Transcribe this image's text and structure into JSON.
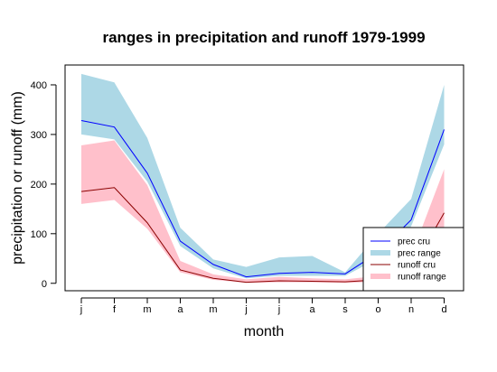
{
  "chart_data": {
    "type": "area",
    "title": "ranges in precipitation and runoff 1979-1999",
    "xlabel": "month",
    "ylabel": "precipitation or runoff (mm)",
    "categories": [
      "j",
      "f",
      "m",
      "a",
      "m",
      "j",
      "j",
      "a",
      "s",
      "o",
      "n",
      "d"
    ],
    "ylim": [
      -15,
      440
    ],
    "y_ticks": [
      0,
      100,
      200,
      300,
      400
    ],
    "legend_position": "bottom-right",
    "series": [
      {
        "name": "prec cru",
        "kind": "line",
        "color": "#0000ff",
        "values": [
          328,
          315,
          222,
          85,
          38,
          13,
          20,
          22,
          19,
          62,
          128,
          310
        ]
      },
      {
        "name": "prec range",
        "kind": "band",
        "color": "#add8e6",
        "lower": [
          300,
          290,
          205,
          75,
          30,
          10,
          15,
          15,
          15,
          50,
          115,
          280
        ],
        "upper": [
          422,
          405,
          293,
          112,
          48,
          33,
          52,
          55,
          22,
          100,
          170,
          400
        ]
      },
      {
        "name": "runoff cru",
        "kind": "line",
        "color": "#8b0000",
        "values": [
          185,
          193,
          122,
          27,
          10,
          2,
          5,
          4,
          3,
          7,
          25,
          142
        ]
      },
      {
        "name": "runoff range",
        "kind": "band",
        "color": "#ffc0cb",
        "lower": [
          160,
          168,
          110,
          22,
          7,
          1,
          2,
          2,
          1,
          3,
          15,
          90
        ],
        "upper": [
          278,
          288,
          198,
          45,
          18,
          8,
          13,
          10,
          8,
          15,
          55,
          230
        ]
      }
    ]
  }
}
